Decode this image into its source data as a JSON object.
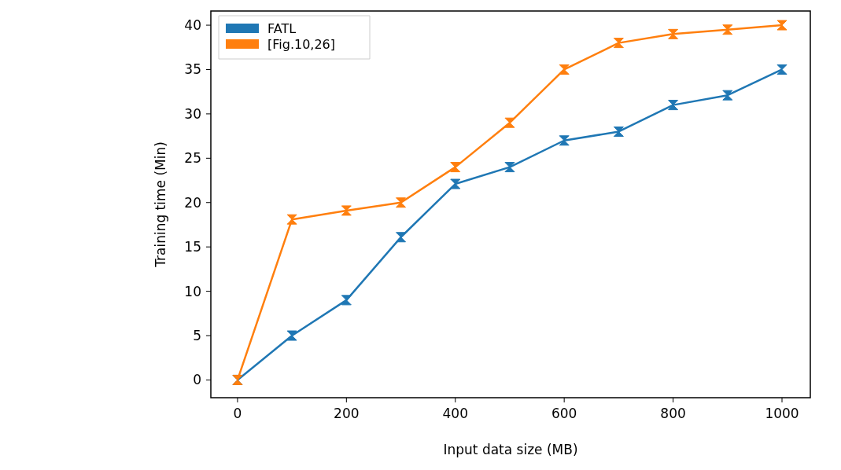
{
  "chart_data": {
    "type": "line",
    "xlabel": "Input data size (MB)",
    "ylabel": "Training time (Min)",
    "x": [
      0,
      100,
      200,
      300,
      400,
      500,
      600,
      700,
      800,
      900,
      1000
    ],
    "series": [
      {
        "name": "FATL",
        "color": "#1f77b4",
        "values": [
          0,
          5,
          9,
          16.1,
          22.1,
          24,
          27,
          28,
          31,
          32.1,
          35
        ]
      },
      {
        "name": "[Fig.10,26]",
        "color": "#ff7f0e",
        "values": [
          0,
          18.1,
          19.1,
          20,
          24,
          29,
          35,
          38,
          39,
          39.5,
          40
        ]
      }
    ],
    "xlim": [
      -49,
      1052
    ],
    "xticks": [
      0,
      200,
      400,
      600,
      800,
      1000
    ],
    "ylim": [
      -2,
      41.6
    ],
    "yticks": [
      0,
      5,
      10,
      15,
      20,
      25,
      30,
      35,
      40
    ],
    "legend": "top left",
    "marker": "triangle",
    "line_style": "solid",
    "grid": false
  }
}
